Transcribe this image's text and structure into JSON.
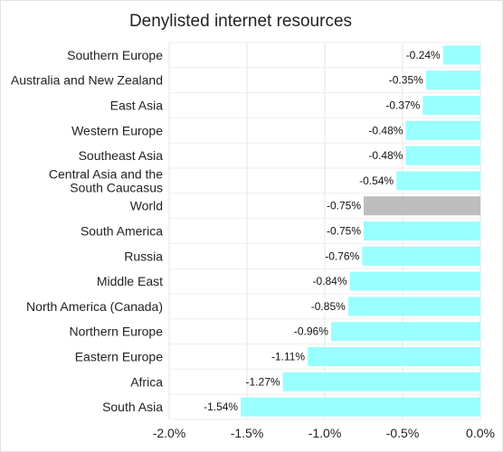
{
  "chart_data": {
    "type": "bar",
    "orientation": "horizontal",
    "title": "Denylisted internet resources",
    "xlabel": "",
    "ylabel": "",
    "xlim": [
      -2.0,
      0.0
    ],
    "x_ticks": [
      "-2.0%",
      "-1.5%",
      "-1.0%",
      "-0.5%",
      "0.0%"
    ],
    "x_tick_values": [
      -2.0,
      -1.5,
      -1.0,
      -0.5,
      0.0
    ],
    "grid": true,
    "legend": "none",
    "categories": [
      "Southern Europe",
      "Australia and New Zealand",
      "East Asia",
      "Western Europe",
      "Southeast Asia",
      "Central Asia and the\nSouth Caucasus",
      "World",
      "South America",
      "Russia",
      "Middle East",
      "North America (Canada)",
      "Northern Europe",
      "Eastern Europe",
      "Africa",
      "South Asia"
    ],
    "values": [
      -0.24,
      -0.35,
      -0.37,
      -0.48,
      -0.48,
      -0.54,
      -0.75,
      -0.75,
      -0.76,
      -0.84,
      -0.85,
      -0.96,
      -1.11,
      -1.27,
      -1.54
    ],
    "data_labels": [
      "-0.24%",
      "-0.35%",
      "-0.37%",
      "-0.48%",
      "-0.48%",
      "-0.54%",
      "-0.75%",
      "-0.75%",
      "-0.76%",
      "-0.84%",
      "-0.85%",
      "-0.96%",
      "-1.11%",
      "-1.27%",
      "-1.54%"
    ],
    "colors": {
      "bar": "#99ffff",
      "highlight": "#bdbdbd",
      "highlight_category": "World"
    }
  }
}
